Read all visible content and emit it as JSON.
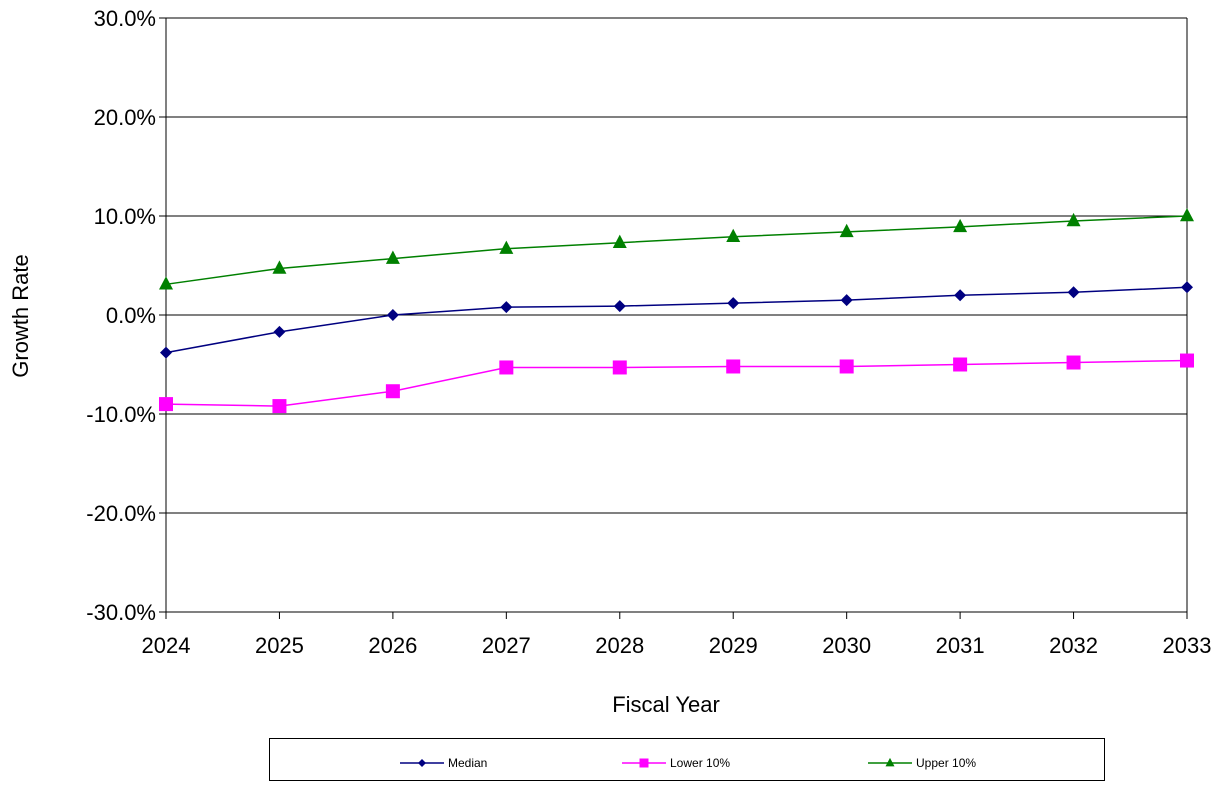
{
  "chart_data": {
    "type": "line",
    "title": "",
    "xlabel": "Fiscal Year",
    "ylabel": "Growth Rate",
    "x": [
      2024,
      2025,
      2026,
      2027,
      2028,
      2029,
      2030,
      2031,
      2032,
      2033
    ],
    "x_tick_labels": [
      "2024",
      "2025",
      "2026",
      "2027",
      "2028",
      "2029",
      "2030",
      "2031",
      "2032",
      "2033"
    ],
    "ylim": [
      -30,
      30
    ],
    "y_ticks": [
      -30,
      -20,
      -10,
      0,
      10,
      20,
      30
    ],
    "y_tick_labels": [
      "-30.0%",
      "-20.0%",
      "-10.0%",
      "0.0%",
      "10.0%",
      "20.0%",
      "30.0%"
    ],
    "grid": "horizontal",
    "legend": "bottom",
    "series": [
      {
        "name": "Median",
        "color": "#000080",
        "marker": "diamond",
        "values": [
          -3.8,
          -1.7,
          0.0,
          0.8,
          0.9,
          1.2,
          1.5,
          2.0,
          2.3,
          2.8
        ]
      },
      {
        "name": "Lower 10%",
        "color": "#FF00FF",
        "marker": "square",
        "values": [
          -9.0,
          -9.2,
          -7.7,
          -5.3,
          -5.3,
          -5.2,
          -5.2,
          -5.0,
          -4.8,
          -4.6
        ]
      },
      {
        "name": "Upper 10%",
        "color": "#008000",
        "marker": "triangle",
        "values": [
          3.1,
          4.7,
          5.7,
          6.7,
          7.3,
          7.9,
          8.4,
          8.9,
          9.5,
          10.0
        ]
      }
    ]
  }
}
